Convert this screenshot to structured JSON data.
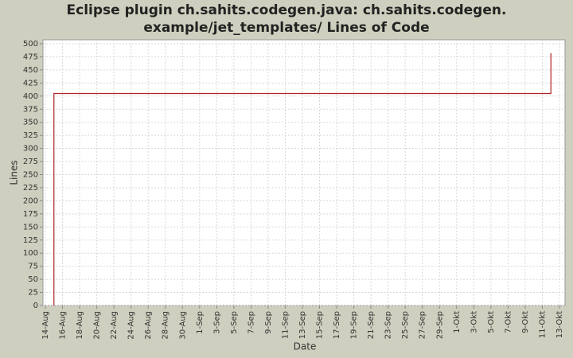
{
  "chart_data": {
    "type": "line",
    "title": [
      "Eclipse plugin ch.sahits.codegen.java: ch.sahits.codegen.",
      "example/jet_templates/ Lines of Code"
    ],
    "x_label": "Date",
    "y_label": "Lines",
    "x": [
      "15-Aug",
      "15-Aug",
      "12-Okt",
      "12-Okt"
    ],
    "series": [
      {
        "name": "Lines",
        "color": "#b22222",
        "values": [
          0,
          405,
          405,
          482
        ]
      }
    ],
    "xlim": [
      "14-Aug",
      "13-Okt"
    ],
    "xticks": [
      "14-Aug",
      "16-Aug",
      "18-Aug",
      "20-Aug",
      "22-Aug",
      "24-Aug",
      "26-Aug",
      "28-Aug",
      "30-Aug",
      "1-Sep",
      "3-Sep",
      "5-Sep",
      "7-Sep",
      "9-Sep",
      "11-Sep",
      "13-Sep",
      "15-Sep",
      "17-Sep",
      "19-Sep",
      "21-Sep",
      "23-Sep",
      "25-Sep",
      "27-Sep",
      "29-Sep",
      "1-Okt",
      "3-Okt",
      "5-Okt",
      "7-Okt",
      "9-Okt",
      "11-Okt",
      "13-Okt"
    ],
    "ylim": [
      0,
      500
    ],
    "yticks": [
      0,
      25,
      50,
      75,
      100,
      125,
      150,
      175,
      200,
      225,
      250,
      275,
      300,
      325,
      350,
      375,
      400,
      425,
      450,
      475,
      500
    ],
    "grid": true
  }
}
